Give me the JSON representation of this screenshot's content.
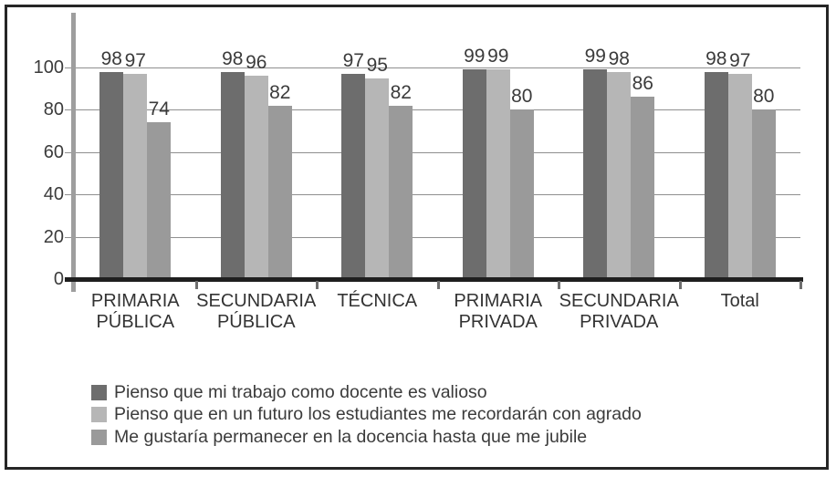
{
  "figure": {
    "background": "#ffffff",
    "border_color": "#262626"
  },
  "chart_data": {
    "type": "bar",
    "title": "",
    "xlabel": "",
    "ylabel": "",
    "categories": [
      "PRIMARIA PÚBLICA",
      "SECUNDARIA PÚBLICA",
      "TÉCNICA",
      "PRIMARIA PRIVADA",
      "SECUNDARIA PRIVADA",
      "Total"
    ],
    "category_label_lines": [
      [
        "PRIMARIA",
        "PÚBLICA"
      ],
      [
        "SECUNDARIA",
        "PÚBLICA"
      ],
      [
        "TÉCNICA"
      ],
      [
        "PRIMARIA",
        "PRIVADA"
      ],
      [
        "SECUNDARIA",
        "PRIVADA"
      ],
      [
        "Total"
      ]
    ],
    "series": [
      {
        "name": "Pienso que mi trabajo como docente es valioso",
        "color": "#6d6d6d",
        "values": [
          98,
          98,
          97,
          99,
          99,
          98
        ]
      },
      {
        "name": "Pienso que en un futuro los estudiantes me recordarán con agrado",
        "color": "#b6b6b6",
        "values": [
          97,
          96,
          95,
          99,
          98,
          97
        ]
      },
      {
        "name": "Me gustaría permanecer en la docencia hasta que me jubile",
        "color": "#9a9a9a",
        "values": [
          74,
          82,
          82,
          80,
          86,
          80
        ]
      }
    ],
    "y_ticks": [
      0,
      20,
      40,
      60,
      80,
      100
    ],
    "ylim": [
      0,
      100
    ],
    "grid": true,
    "value_labels": true,
    "legend_position": "bottom",
    "axis_colors": {
      "grid": "#8f8f8f",
      "y_spine": "#9e9e9e",
      "baseline": "#1f1f1f",
      "text": "#3b3b3b"
    }
  }
}
